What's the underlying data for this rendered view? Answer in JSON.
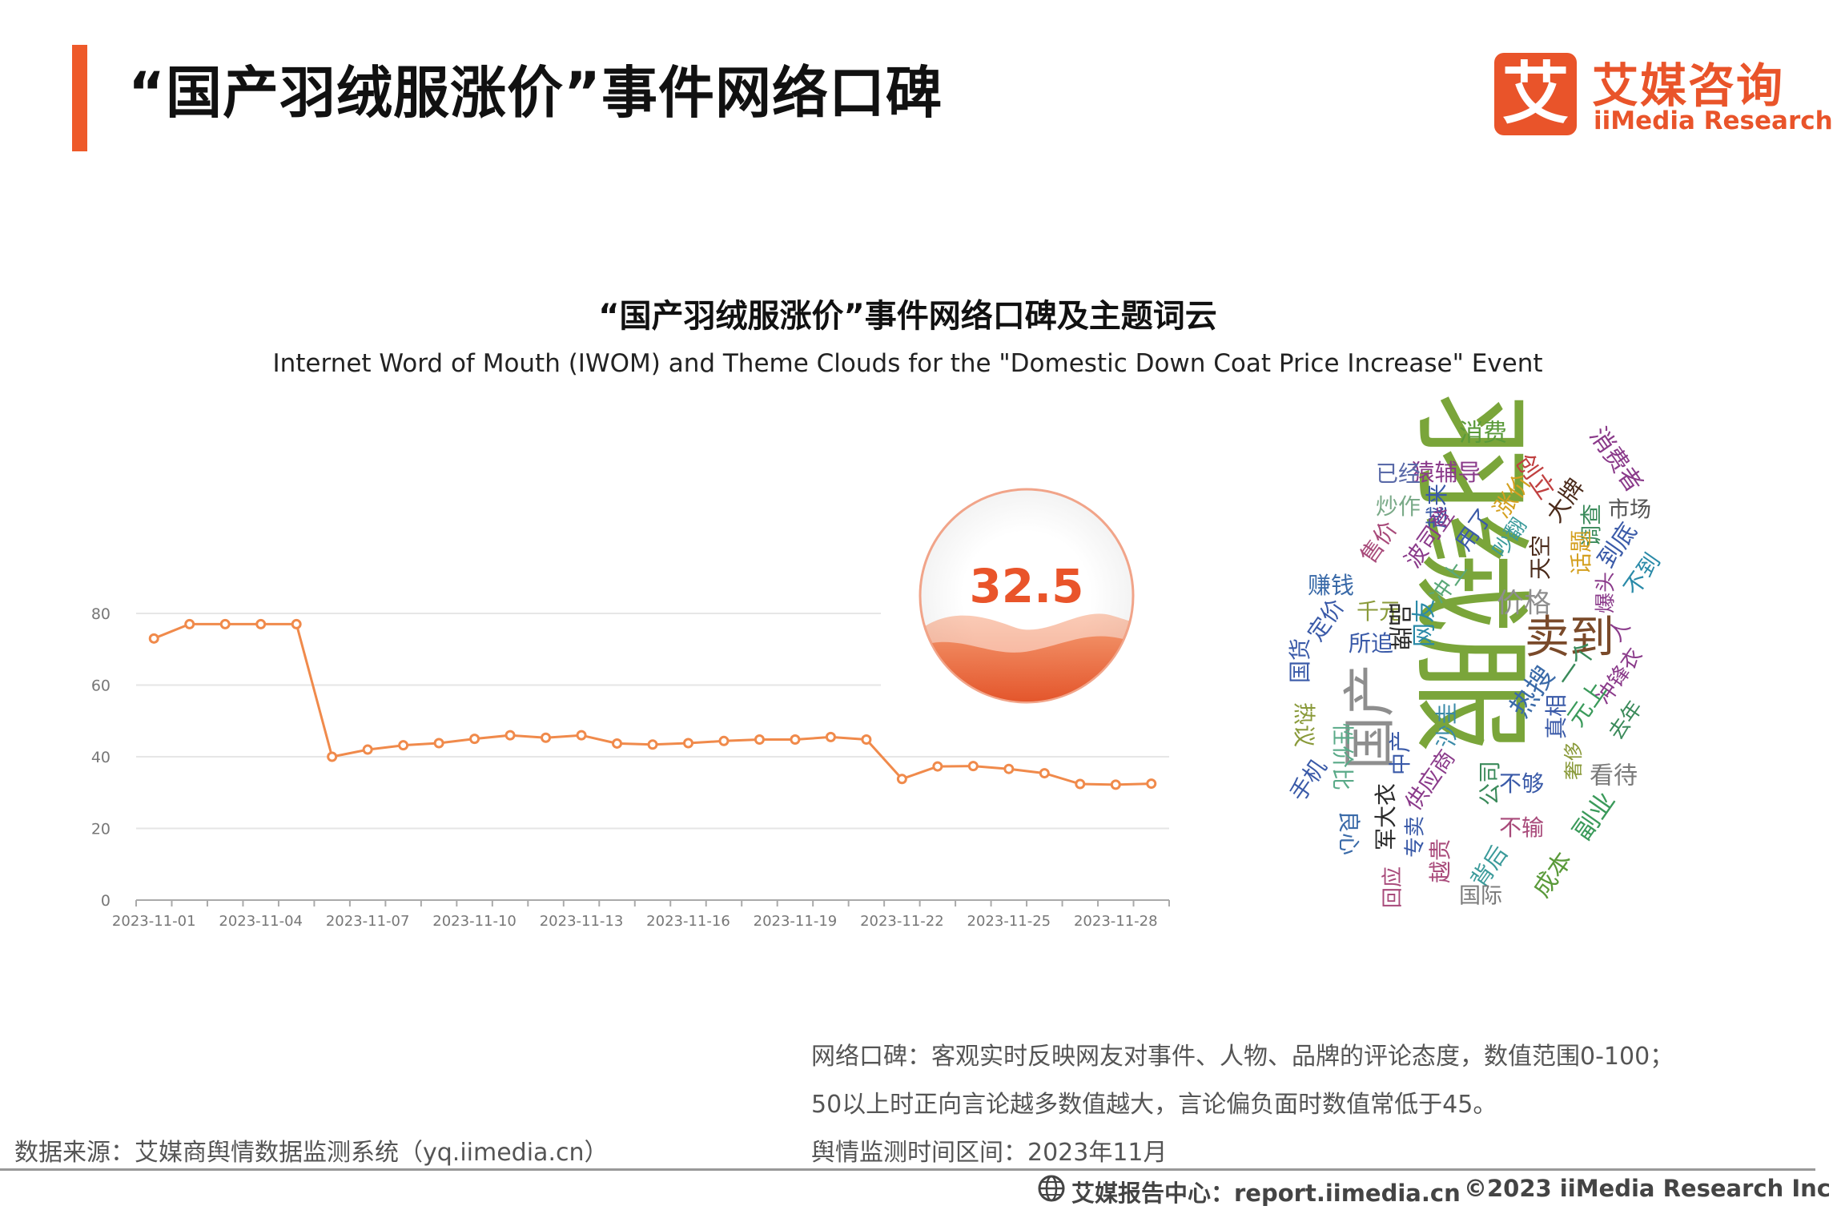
{
  "header": {
    "title": "“国产羽绒服涨价”事件网络口碑",
    "logo_mark": "艾",
    "logo_cn": "艾媒咨询",
    "logo_en": "iiMedia Research",
    "accent_color": "#ee5a2a"
  },
  "chart_title": "“国产羽绒服涨价”事件网络口碑及主题词云",
  "chart_subtitle": "Internet Word of Mouth (IWOM) and Theme Clouds for the \"Domestic Down Coat Price Increase\" Event",
  "chart_data": {
    "type": "line",
    "title": "“国产羽绒服涨价”事件网络口碑及主题词云",
    "subtitle": "Internet Word of Mouth (IWOM) and Theme Clouds for the \"Domestic Down Coat Price Increase\" Event",
    "xlabel": "",
    "ylabel": "",
    "ylim": [
      0,
      80
    ],
    "yticks": [
      0,
      20,
      40,
      60,
      80
    ],
    "grid": true,
    "x": [
      "2023-11-01",
      "2023-11-02",
      "2023-11-03",
      "2023-11-04",
      "2023-11-05",
      "2023-11-06",
      "2023-11-07",
      "2023-11-08",
      "2023-11-09",
      "2023-11-10",
      "2023-11-11",
      "2023-11-12",
      "2023-11-13",
      "2023-11-14",
      "2023-11-15",
      "2023-11-16",
      "2023-11-17",
      "2023-11-18",
      "2023-11-19",
      "2023-11-20",
      "2023-11-21",
      "2023-11-22",
      "2023-11-23",
      "2023-11-24",
      "2023-11-25",
      "2023-11-26",
      "2023-11-27",
      "2023-11-28",
      "2023-11-29"
    ],
    "x_tick_labels": [
      "2023-11-01",
      "2023-11-04",
      "2023-11-07",
      "2023-11-10",
      "2023-11-13",
      "2023-11-16",
      "2023-11-19",
      "2023-11-22",
      "2023-11-25",
      "2023-11-28"
    ],
    "series": [
      {
        "values": [
          73.0,
          77.0,
          77.0,
          77.0,
          77.0,
          40.0,
          42.0,
          43.2,
          43.8,
          45.0,
          46.0,
          45.3,
          46.0,
          43.7,
          43.4,
          43.8,
          44.4,
          44.8,
          44.8,
          45.5,
          44.8,
          33.8,
          37.3,
          37.4,
          36.6,
          35.4,
          32.4,
          32.2,
          32.5
        ],
        "color": "#f08a4b"
      }
    ],
    "current_value": "32.5"
  },
  "word_cloud": {
    "words": [
      {
        "text": "羽绒服",
        "color": "#7aa53a"
      },
      {
        "text": "国产",
        "color": "#8e8e8e"
      },
      {
        "text": "卖到",
        "color": "#7a4a2a"
      },
      {
        "text": "价格",
        "color": "#8e8e8e"
      },
      {
        "text": "消费",
        "color": "#5a9a3a"
      },
      {
        "text": "消费者",
        "color": "#8a3a8a"
      },
      {
        "text": "猿辅导",
        "color": "#8a3a8a"
      },
      {
        "text": "创立",
        "color": "#c04040"
      },
      {
        "text": "已经",
        "color": "#5a6aa8"
      },
      {
        "text": "越来",
        "color": "#3a5aa8"
      },
      {
        "text": "涨价",
        "color": "#d4a020"
      },
      {
        "text": "大牌",
        "color": "#4a2a1a"
      },
      {
        "text": "市场",
        "color": "#555555"
      },
      {
        "text": "炒作",
        "color": "#7aaa88"
      },
      {
        "text": "波司登",
        "color": "#8a3a8a"
      },
      {
        "text": "用了",
        "color": "#3a5aa8"
      },
      {
        "text": "吵翻",
        "color": "#3a9a9a"
      },
      {
        "text": "调查",
        "color": "#3a8a5a"
      },
      {
        "text": "售价",
        "color": "#a84a7a"
      },
      {
        "text": "天空",
        "color": "#4a2a1a"
      },
      {
        "text": "话题",
        "color": "#d4a020"
      },
      {
        "text": "到底",
        "color": "#3a5aa8"
      },
      {
        "text": "赚钱",
        "color": "#3a6aa8"
      },
      {
        "text": "冲上",
        "color": "#5aa878"
      },
      {
        "text": "不到",
        "color": "#2a8aa8"
      },
      {
        "text": "千元",
        "color": "#8a9a3a"
      },
      {
        "text": "定价",
        "color": "#3a5aa8"
      },
      {
        "text": "品牌",
        "color": "#2a2a2a"
      },
      {
        "text": "网友",
        "color": "#2a8aa8"
      },
      {
        "text": "爆头",
        "color": "#8a3a8a"
      },
      {
        "text": "人",
        "color": "#8a3a8a"
      },
      {
        "text": "所追",
        "color": "#3a5aa8"
      },
      {
        "text": "国货",
        "color": "#3a5aa8"
      },
      {
        "text": "热搜",
        "color": "#3a6aa8"
      },
      {
        "text": "一个",
        "color": "#3a8a5a"
      },
      {
        "text": "冲锋衣",
        "color": "#8a3a8a"
      },
      {
        "text": "热议",
        "color": "#8a9a3a"
      },
      {
        "text": "中产",
        "color": "#3a5aa8"
      },
      {
        "text": "沙圭",
        "color": "#3a8aa8"
      },
      {
        "text": "真相",
        "color": "#3a5aa8"
      },
      {
        "text": "元上",
        "color": "#3a9a5a"
      },
      {
        "text": "去年",
        "color": "#3a8a5a"
      },
      {
        "text": "性价比",
        "color": "#5aaa88"
      },
      {
        "text": "手机",
        "color": "#3a5aa8"
      },
      {
        "text": "供应商",
        "color": "#8a3a8a"
      },
      {
        "text": "奢侈",
        "color": "#8a9a3a"
      },
      {
        "text": "看待",
        "color": "#7a7a7a"
      },
      {
        "text": "公司",
        "color": "#3a8a5a"
      },
      {
        "text": "不够",
        "color": "#3a5aa8"
      },
      {
        "text": "军大衣",
        "color": "#2a2a2a"
      },
      {
        "text": "副业",
        "color": "#3a9a5a"
      },
      {
        "text": "良心",
        "color": "#3a6aa8"
      },
      {
        "text": "不输",
        "color": "#a84a7a"
      },
      {
        "text": "专卖",
        "color": "#3a5aa8"
      },
      {
        "text": "越贵",
        "color": "#a84a7a"
      },
      {
        "text": "背后",
        "color": "#3a9a9a"
      },
      {
        "text": "成本",
        "color": "#5a9a3a"
      },
      {
        "text": "回应",
        "color": "#a84a7a"
      },
      {
        "text": "国际",
        "color": "#7a7a7a"
      }
    ]
  },
  "notes": {
    "line1": "网络口碑：客观实时反映网友对事件、人物、品牌的评论态度，数值范围0-100；",
    "line2": "50以上时正向言论越多数值越大，言论偏负面时数值常低于45。",
    "line3": "舆情监测时间区间：2023年11月"
  },
  "source": "数据来源：艾媒商舆情数据监测系统（yq.iimedia.cn）",
  "footer": {
    "center": "艾媒报告中心：report.iimedia.cn",
    "right": "©2023  iiMedia Research  Inc"
  }
}
